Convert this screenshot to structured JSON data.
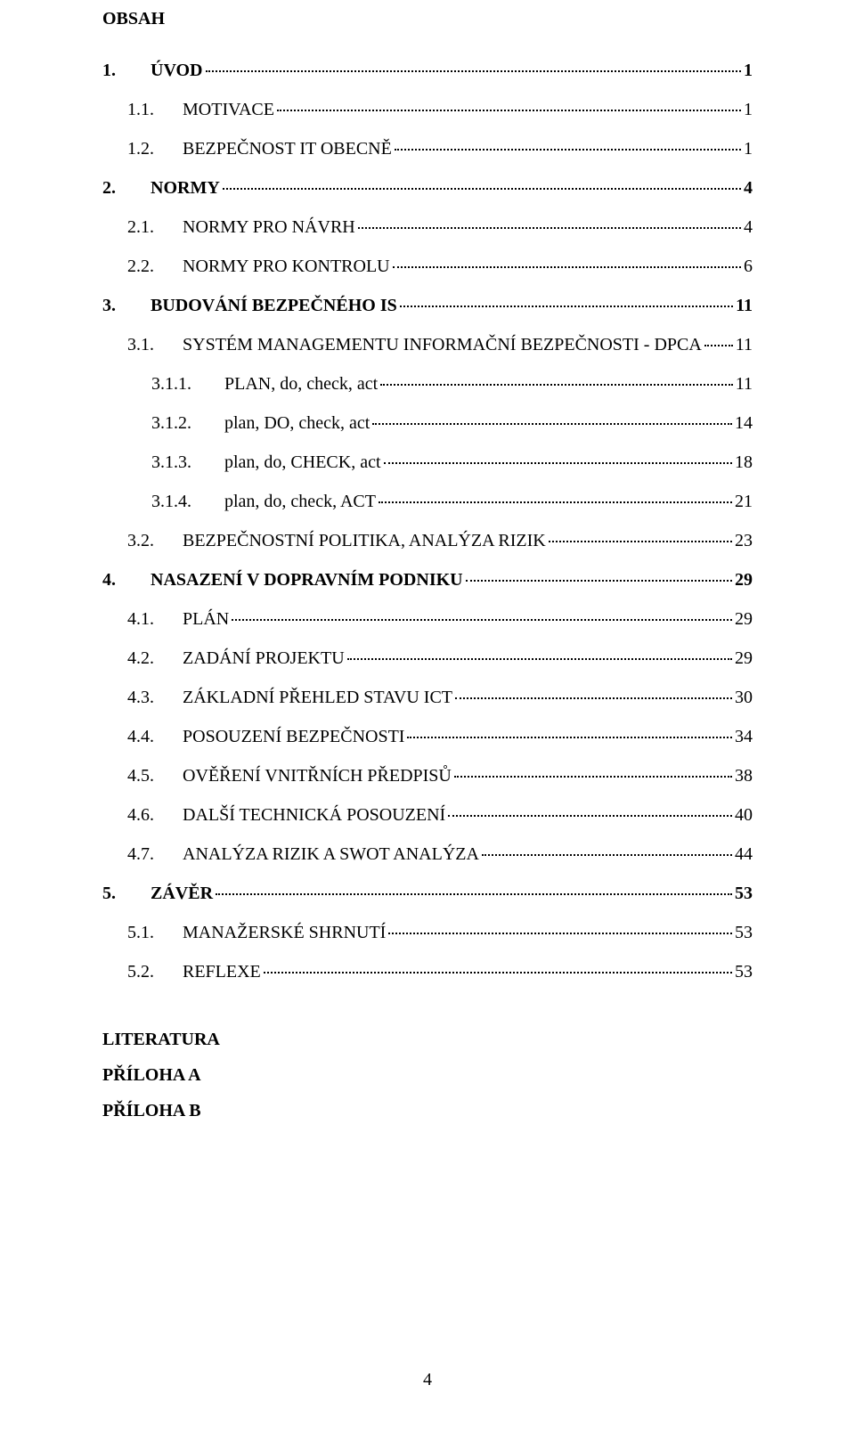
{
  "heading": "OBSAH",
  "toc": [
    {
      "level": 1,
      "num": "1.",
      "label": "ÚVOD",
      "page": "1"
    },
    {
      "level": 2,
      "num": "1.1.",
      "label": "MOTIVACE",
      "page": "1",
      "sc": true
    },
    {
      "level": 2,
      "num": "1.2.",
      "label": "BEZPEČNOST IT OBECNĚ",
      "page": "1",
      "sc": true
    },
    {
      "level": 1,
      "num": "2.",
      "label": "NORMY",
      "page": "4"
    },
    {
      "level": 2,
      "num": "2.1.",
      "label": "NORMY PRO NÁVRH",
      "page": "4",
      "sc": true
    },
    {
      "level": 2,
      "num": "2.2.",
      "label": "NORMY PRO KONTROLU",
      "page": "6",
      "sc": true
    },
    {
      "level": 1,
      "num": "3.",
      "label": "BUDOVÁNÍ BEZPEČNÉHO IS",
      "page": "11"
    },
    {
      "level": 2,
      "num": "3.1.",
      "label": "SYSTÉM MANAGEMENTU INFORMAČNÍ BEZPEČNOSTI - DPCA",
      "page": "11",
      "sc": true
    },
    {
      "level": 3,
      "num": "3.1.1.",
      "label": "PLAN, do, check, act",
      "page": "11"
    },
    {
      "level": 3,
      "num": "3.1.2.",
      "label": "plan, DO, check, act",
      "page": "14"
    },
    {
      "level": 3,
      "num": "3.1.3.",
      "label": "plan, do, CHECK, act",
      "page": "18"
    },
    {
      "level": 3,
      "num": "3.1.4.",
      "label": "plan, do, check, ACT",
      "page": "21"
    },
    {
      "level": 2,
      "num": "3.2.",
      "label": "BEZPEČNOSTNÍ POLITIKA, ANALÝZA RIZIK",
      "page": "23",
      "sc": true
    },
    {
      "level": 1,
      "num": "4.",
      "label": "NASAZENÍ V DOPRAVNÍM PODNIKU",
      "page": "29"
    },
    {
      "level": 2,
      "num": "4.1.",
      "label": "PLÁN",
      "page": "29",
      "sc": true
    },
    {
      "level": 2,
      "num": "4.2.",
      "label": "ZADÁNÍ PROJEKTU",
      "page": "29",
      "sc": true
    },
    {
      "level": 2,
      "num": "4.3.",
      "label": "ZÁKLADNÍ PŘEHLED STAVU ICT",
      "page": "30",
      "sc": true
    },
    {
      "level": 2,
      "num": "4.4.",
      "label": "POSOUZENÍ BEZPEČNOSTI",
      "page": "34",
      "sc": true
    },
    {
      "level": 2,
      "num": "4.5.",
      "label": "OVĚŘENÍ VNITŘNÍCH PŘEDPISŮ",
      "page": "38",
      "sc": true
    },
    {
      "level": 2,
      "num": "4.6.",
      "label": "DALŠÍ TECHNICKÁ POSOUZENÍ",
      "page": "40",
      "sc": true
    },
    {
      "level": 2,
      "num": "4.7.",
      "label": "ANALÝZA RIZIK A SWOT ANALÝZA",
      "page": "44",
      "sc": true
    },
    {
      "level": 1,
      "num": "5.",
      "label": "ZÁVĚR",
      "page": "53"
    },
    {
      "level": 2,
      "num": "5.1.",
      "label": "MANAŽERSKÉ SHRNUTÍ",
      "page": "53",
      "sc": true
    },
    {
      "level": 2,
      "num": "5.2.",
      "label": "REFLEXE",
      "page": "53",
      "sc": true
    }
  ],
  "end_lines": [
    "LITERATURA",
    "PŘÍLOHA A",
    "PŘÍLOHA B"
  ],
  "page_number": "4"
}
